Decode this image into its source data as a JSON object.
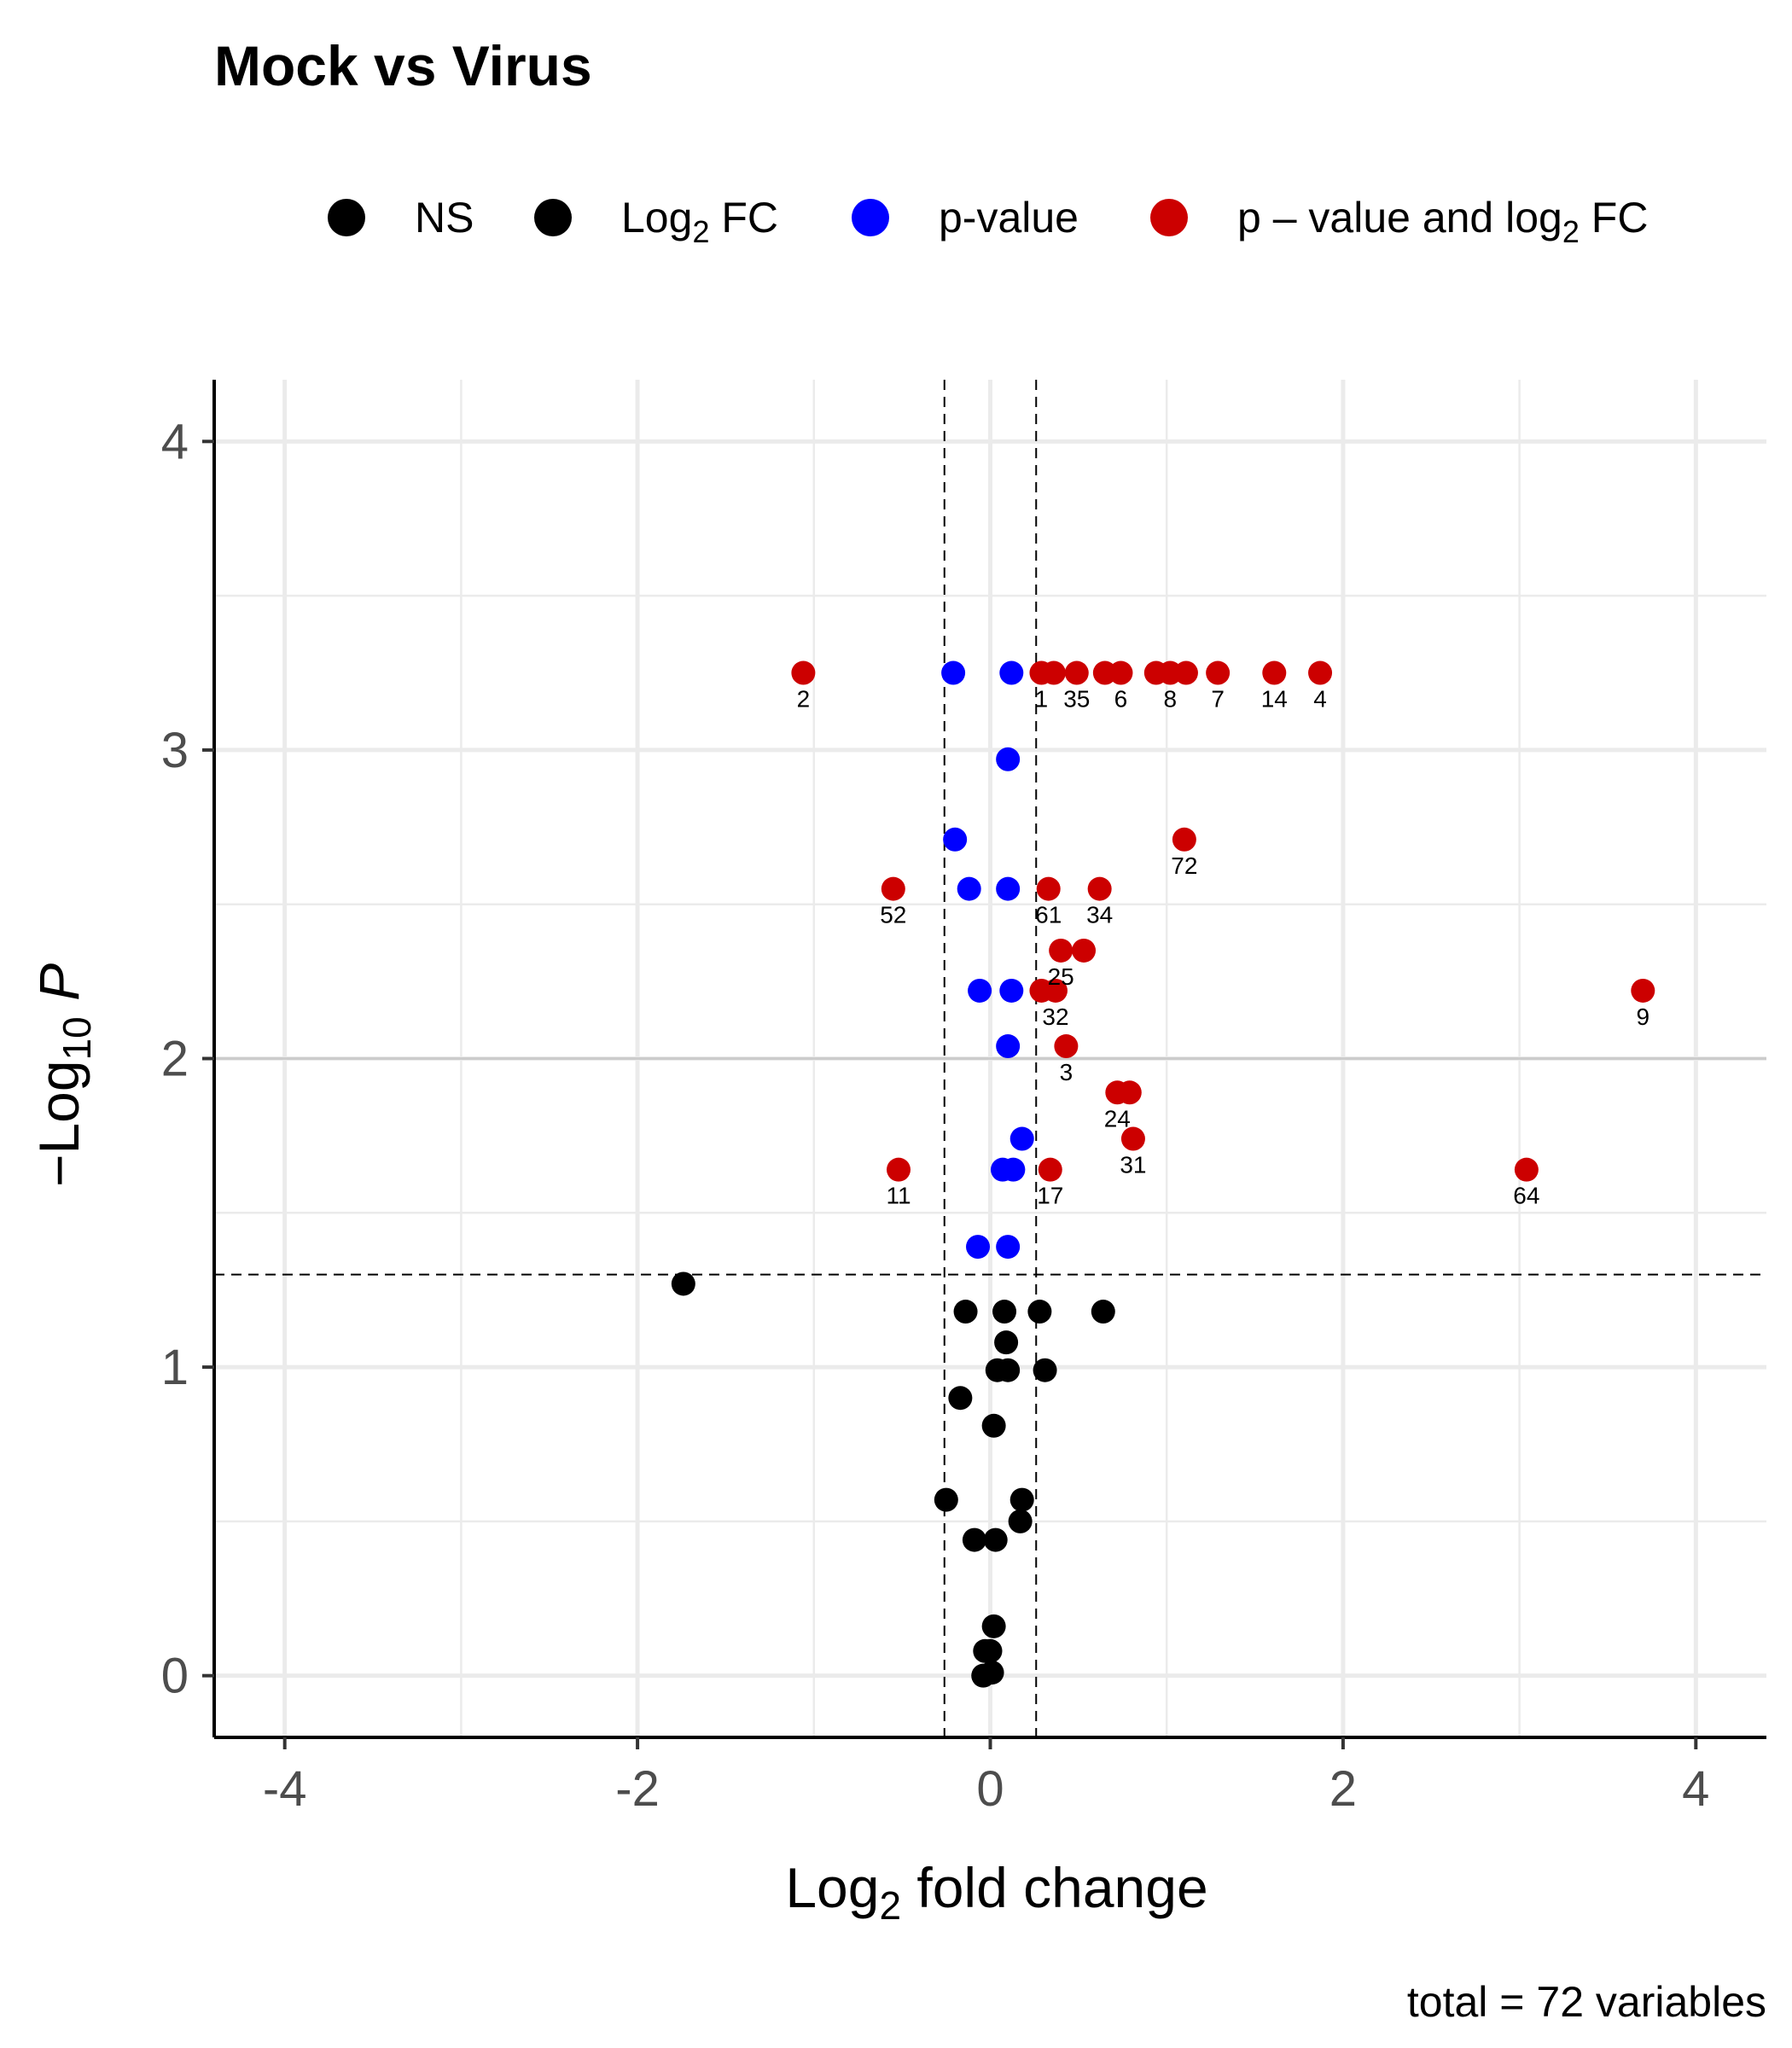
{
  "chart_data": {
    "type": "scatter",
    "title": "Mock vs Virus",
    "xlabel": "Log2 fold change",
    "ylabel": "-Log10 P",
    "caption": "total = 72 variables",
    "xlim": [
      -4.4,
      4.4
    ],
    "ylim": [
      -0.2,
      4.2
    ],
    "x_ticks": [
      -4,
      -2,
      0,
      2,
      4
    ],
    "x_tick_labels": [
      "-4",
      "-2",
      "0",
      "2",
      "4"
    ],
    "y_ticks": [
      0,
      1,
      2,
      3,
      4
    ],
    "y_tick_labels": [
      "0",
      "1",
      "2",
      "3",
      "4"
    ],
    "cutoffs": {
      "fc": [
        -0.26,
        0.26
      ],
      "p": 1.3
    },
    "grey_line_y": 2,
    "legend": {
      "position": "top",
      "entries": [
        {
          "key": "ns",
          "label": "NS",
          "color": "#000000"
        },
        {
          "key": "fc",
          "label": "Log",
          "sub": "2",
          "label_after": " FC",
          "color": "#000000"
        },
        {
          "key": "p",
          "label": "p-value",
          "color": "#0000ff"
        },
        {
          "key": "pfc",
          "label": "p – value and log",
          "sub": "2",
          "label_after": " FC",
          "color": "#cc0000"
        }
      ]
    },
    "series": [
      {
        "key": "ns",
        "color": "#000000",
        "points": [
          {
            "x": -1.74,
            "y": 1.27
          },
          {
            "x": -0.14,
            "y": 1.18
          },
          {
            "x": 0.08,
            "y": 1.18
          },
          {
            "x": 0.28,
            "y": 1.18
          },
          {
            "x": 0.64,
            "y": 1.18
          },
          {
            "x": 0.09,
            "y": 1.08
          },
          {
            "x": 0.04,
            "y": 0.99
          },
          {
            "x": 0.1,
            "y": 0.99
          },
          {
            "x": 0.31,
            "y": 0.99
          },
          {
            "x": -0.17,
            "y": 0.9
          },
          {
            "x": 0.02,
            "y": 0.81
          },
          {
            "x": -0.25,
            "y": 0.57
          },
          {
            "x": 0.18,
            "y": 0.57
          },
          {
            "x": 0.17,
            "y": 0.5
          },
          {
            "x": -0.09,
            "y": 0.44
          },
          {
            "x": 0.03,
            "y": 0.44
          },
          {
            "x": 0.02,
            "y": 0.16
          },
          {
            "x": -0.03,
            "y": 0.08
          },
          {
            "x": 0.0,
            "y": 0.08
          },
          {
            "x": -0.04,
            "y": 0.0
          },
          {
            "x": 0.01,
            "y": 0.01
          }
        ]
      },
      {
        "key": "p",
        "color": "#0000ff",
        "points": [
          {
            "x": -0.21,
            "y": 3.25
          },
          {
            "x": 0.12,
            "y": 3.25
          },
          {
            "x": 0.1,
            "y": 2.97
          },
          {
            "x": -0.2,
            "y": 2.71
          },
          {
            "x": -0.12,
            "y": 2.55
          },
          {
            "x": 0.1,
            "y": 2.55
          },
          {
            "x": -0.06,
            "y": 2.22
          },
          {
            "x": 0.12,
            "y": 2.22
          },
          {
            "x": 0.1,
            "y": 2.04
          },
          {
            "x": 0.18,
            "y": 1.74
          },
          {
            "x": 0.07,
            "y": 1.64
          },
          {
            "x": 0.13,
            "y": 1.64
          },
          {
            "x": -0.07,
            "y": 1.39
          },
          {
            "x": 0.1,
            "y": 1.39
          }
        ]
      },
      {
        "key": "pfc",
        "color": "#cc0000",
        "points": [
          {
            "x": -1.06,
            "y": 3.25,
            "label": "2"
          },
          {
            "x": 0.29,
            "y": 3.25,
            "label": "1"
          },
          {
            "x": 0.36,
            "y": 3.25
          },
          {
            "x": 0.49,
            "y": 3.25,
            "label": "35"
          },
          {
            "x": 0.65,
            "y": 3.25
          },
          {
            "x": 0.74,
            "y": 3.25,
            "label": "6"
          },
          {
            "x": 0.94,
            "y": 3.25
          },
          {
            "x": 1.02,
            "y": 3.25,
            "label": "8"
          },
          {
            "x": 1.11,
            "y": 3.25
          },
          {
            "x": 1.29,
            "y": 3.25,
            "label": "7"
          },
          {
            "x": 1.61,
            "y": 3.25,
            "label": "14"
          },
          {
            "x": 1.87,
            "y": 3.25,
            "label": "4"
          },
          {
            "x": 1.1,
            "y": 2.71,
            "label": "72"
          },
          {
            "x": -0.55,
            "y": 2.55,
            "label": "52"
          },
          {
            "x": 0.33,
            "y": 2.55,
            "label": "61"
          },
          {
            "x": 0.62,
            "y": 2.55,
            "label": "34"
          },
          {
            "x": 0.4,
            "y": 2.35,
            "label": "25"
          },
          {
            "x": 0.53,
            "y": 2.35
          },
          {
            "x": 0.29,
            "y": 2.22
          },
          {
            "x": 0.37,
            "y": 2.22,
            "label": "32"
          },
          {
            "x": 3.7,
            "y": 2.22,
            "label": "9"
          },
          {
            "x": 0.43,
            "y": 2.04,
            "label": "3"
          },
          {
            "x": 0.72,
            "y": 1.89,
            "label": "24"
          },
          {
            "x": 0.79,
            "y": 1.89
          },
          {
            "x": 0.81,
            "y": 1.74,
            "label": "31"
          },
          {
            "x": -0.52,
            "y": 1.64,
            "label": "11"
          },
          {
            "x": 0.34,
            "y": 1.64,
            "label": "17"
          },
          {
            "x": 3.04,
            "y": 1.64,
            "label": "64"
          }
        ]
      }
    ]
  }
}
